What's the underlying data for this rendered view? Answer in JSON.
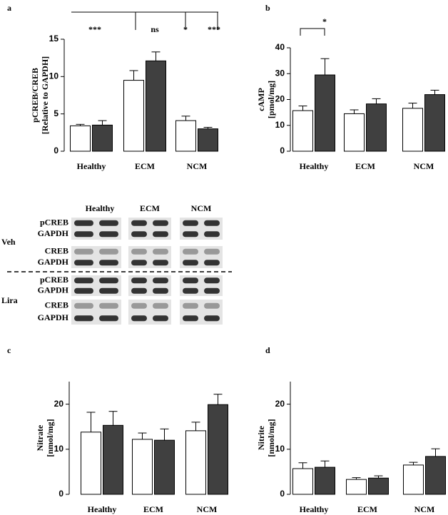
{
  "chart_data": [
    {
      "type": "bar",
      "panel_label": "a",
      "ylabel": [
        "pCREB/CREB",
        "[Relative to GAPDH]"
      ],
      "categories": [
        "Healthy",
        "ECM",
        "NCM"
      ],
      "series": [
        {
          "color": "#ffffff",
          "values": [
            3.4,
            9.5,
            4.1
          ],
          "errors": [
            0.2,
            1.3,
            0.6
          ]
        },
        {
          "color": "#404040",
          "values": [
            3.5,
            12.1,
            3.0
          ],
          "errors": [
            0.6,
            1.2,
            0.2
          ]
        }
      ],
      "annotations": [
        "***",
        "ns",
        "*",
        "***"
      ],
      "ylim": [
        0,
        15
      ],
      "yticks": [
        0,
        5,
        10,
        15
      ]
    },
    {
      "type": "bar",
      "panel_label": "b",
      "ylabel": [
        "cAMP",
        "[pmol/mg]"
      ],
      "categories": [
        "Healthy",
        "ECM",
        "NCM"
      ],
      "series": [
        {
          "color": "#ffffff",
          "values": [
            15.7,
            14.5,
            16.6
          ],
          "errors": [
            1.8,
            1.5,
            2.0
          ]
        },
        {
          "color": "#404040",
          "values": [
            29.5,
            18.3,
            21.9
          ],
          "errors": [
            6.3,
            2.0,
            1.7
          ]
        }
      ],
      "annotations": [
        "*"
      ],
      "ylim": [
        0,
        40
      ],
      "yticks": [
        0,
        10,
        20,
        30,
        40
      ]
    },
    {
      "type": "bar",
      "panel_label": "c",
      "ylabel": [
        "Nitrate",
        "[nmol/mg]"
      ],
      "categories": [
        "Healthy",
        "ECM",
        "NCM"
      ],
      "series": [
        {
          "color": "#ffffff",
          "values": [
            13.8,
            12.2,
            14.1
          ],
          "errors": [
            4.4,
            1.4,
            1.9
          ]
        },
        {
          "color": "#404040",
          "values": [
            15.3,
            12.0,
            19.9
          ],
          "errors": [
            3.1,
            2.5,
            2.3
          ]
        }
      ],
      "ylim": [
        0,
        25
      ],
      "yticks": [
        0,
        10,
        20
      ]
    },
    {
      "type": "bar",
      "panel_label": "d",
      "ylabel": [
        "Nitrite",
        "[nmol/mg]"
      ],
      "categories": [
        "Healthy",
        "ECM",
        "NCM"
      ],
      "series": [
        {
          "color": "#ffffff",
          "values": [
            5.7,
            3.3,
            6.5
          ],
          "errors": [
            1.3,
            0.4,
            0.6
          ]
        },
        {
          "color": "#404040",
          "values": [
            6.0,
            3.6,
            8.4
          ],
          "errors": [
            1.4,
            0.5,
            1.7
          ]
        }
      ],
      "ylim": [
        0,
        25
      ],
      "yticks": [
        0,
        10,
        20
      ]
    }
  ],
  "blot": {
    "lanes": [
      "Healthy",
      "ECM",
      "NCM"
    ],
    "groups": [
      {
        "name": "Veh",
        "rows": [
          [
            "pCREB",
            "GAPDH"
          ],
          [
            "CREB",
            "GAPDH"
          ]
        ]
      },
      {
        "name": "Lira",
        "rows": [
          [
            "pCREB",
            "GAPDH"
          ],
          [
            "CREB",
            "GAPDH"
          ]
        ]
      }
    ]
  }
}
